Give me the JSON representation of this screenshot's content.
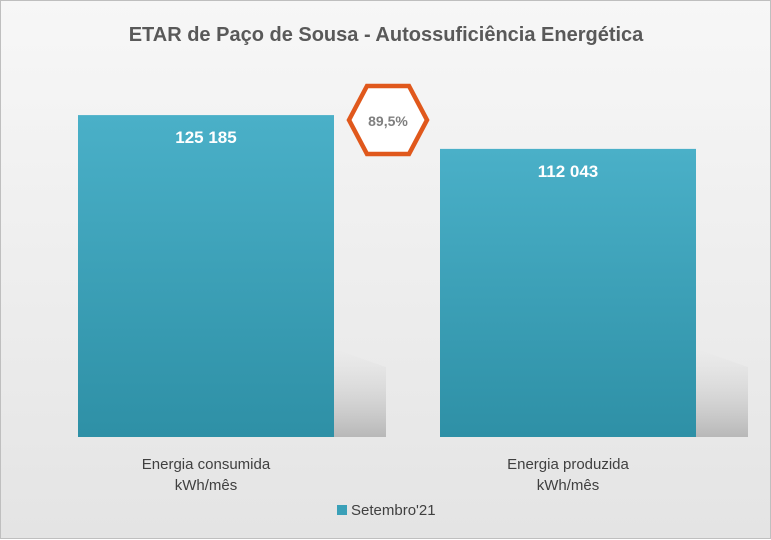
{
  "chart_data": {
    "type": "bar",
    "title": "ETAR de Paço de Sousa - Autossuficiência Energética",
    "categories": [
      [
        "Energia consumida",
        "kWh/mês"
      ],
      [
        "Energia produzida",
        "kWh/mês"
      ]
    ],
    "series": [
      {
        "name": "Setembro'21",
        "values": [
          125185,
          112043
        ],
        "labels": [
          "125 185",
          "112 043"
        ],
        "color": "#3aa0b8"
      }
    ],
    "ylim": [
      0,
      140000
    ],
    "grid": false,
    "legend_position": "bottom",
    "annotation": {
      "text": "89,5%",
      "shape": "hexagon",
      "color": "#e0581c"
    }
  }
}
